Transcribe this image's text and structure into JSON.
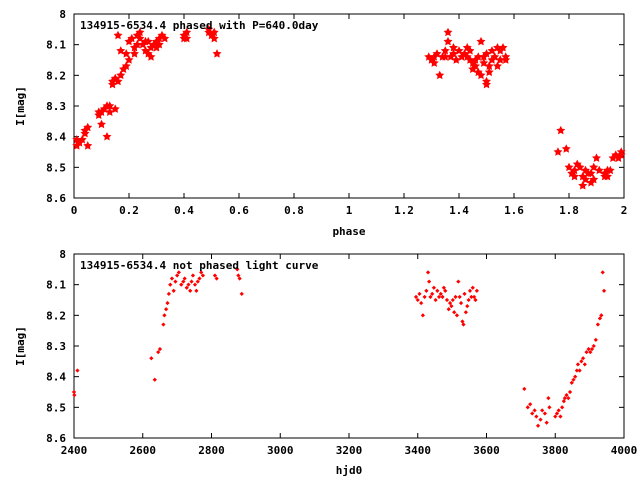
{
  "chart_data": [
    {
      "type": "scatter",
      "title": "134915-6534.4 phased with P=640.0day",
      "xlabel": "phase",
      "ylabel": "I[mag]",
      "xlim": [
        0,
        2
      ],
      "ylim": [
        8,
        8.6
      ],
      "y_inverted": true,
      "xticks": [
        "0",
        "0.2",
        "0.4",
        "0.6",
        "0.8",
        "1",
        "1.2",
        "1.4",
        "1.6",
        "1.8",
        "2"
      ],
      "yticks": [
        "8",
        "8.1",
        "8.2",
        "8.3",
        "8.4",
        "8.5",
        "8.6"
      ],
      "grid": false,
      "marker_color": "#ff0000",
      "marker": "filled-star",
      "series": [
        {
          "name": "",
          "points": [
            [
              0.01,
              8.41
            ],
            [
              0.01,
              8.43
            ],
            [
              0.02,
              8.42
            ],
            [
              0.03,
              8.41
            ],
            [
              0.04,
              8.38
            ],
            [
              0.04,
              8.39
            ],
            [
              0.05,
              8.43
            ],
            [
              0.05,
              8.37
            ],
            [
              0.09,
              8.33
            ],
            [
              0.09,
              8.32
            ],
            [
              0.1,
              8.36
            ],
            [
              0.1,
              8.32
            ],
            [
              0.11,
              8.31
            ],
            [
              0.12,
              8.3
            ],
            [
              0.12,
              8.4
            ],
            [
              0.13,
              8.32
            ],
            [
              0.13,
              8.3
            ],
            [
              0.14,
              8.23
            ],
            [
              0.14,
              8.22
            ],
            [
              0.15,
              8.21
            ],
            [
              0.15,
              8.31
            ],
            [
              0.16,
              8.22
            ],
            [
              0.16,
              8.07
            ],
            [
              0.17,
              8.12
            ],
            [
              0.17,
              8.2
            ],
            [
              0.18,
              8.18
            ],
            [
              0.19,
              8.17
            ],
            [
              0.19,
              8.13
            ],
            [
              0.2,
              8.15
            ],
            [
              0.2,
              8.09
            ],
            [
              0.21,
              8.08
            ],
            [
              0.22,
              8.13
            ],
            [
              0.22,
              8.11
            ],
            [
              0.23,
              8.07
            ],
            [
              0.23,
              8.1
            ],
            [
              0.24,
              8.08
            ],
            [
              0.24,
              8.06
            ],
            [
              0.25,
              8.1
            ],
            [
              0.26,
              8.12
            ],
            [
              0.26,
              8.09
            ],
            [
              0.27,
              8.13
            ],
            [
              0.27,
              8.09
            ],
            [
              0.28,
              8.11
            ],
            [
              0.28,
              8.14
            ],
            [
              0.29,
              8.1
            ],
            [
              0.3,
              8.11
            ],
            [
              0.3,
              8.09
            ],
            [
              0.31,
              8.08
            ],
            [
              0.31,
              8.1
            ],
            [
              0.32,
              8.07
            ],
            [
              0.33,
              8.08
            ],
            [
              0.4,
              8.07
            ],
            [
              0.4,
              8.08
            ],
            [
              0.41,
              8.06
            ],
            [
              0.41,
              8.08
            ],
            [
              0.49,
              8.05
            ],
            [
              0.49,
              8.06
            ],
            [
              0.5,
              8.07
            ],
            [
              0.51,
              8.08
            ],
            [
              0.51,
              8.06
            ],
            [
              0.52,
              8.13
            ],
            [
              1.29,
              8.14
            ],
            [
              1.3,
              8.15
            ],
            [
              1.31,
              8.14
            ],
            [
              1.31,
              8.16
            ],
            [
              1.32,
              8.13
            ],
            [
              1.33,
              8.2
            ],
            [
              1.34,
              8.14
            ],
            [
              1.35,
              8.12
            ],
            [
              1.35,
              8.14
            ],
            [
              1.36,
              8.06
            ],
            [
              1.36,
              8.09
            ],
            [
              1.37,
              8.14
            ],
            [
              1.38,
              8.13
            ],
            [
              1.38,
              8.11
            ],
            [
              1.39,
              8.15
            ],
            [
              1.4,
              8.12
            ],
            [
              1.41,
              8.14
            ],
            [
              1.42,
              8.13
            ],
            [
              1.43,
              8.14
            ],
            [
              1.43,
              8.11
            ],
            [
              1.44,
              8.12
            ],
            [
              1.44,
              8.15
            ],
            [
              1.45,
              8.18
            ],
            [
              1.45,
              8.16
            ],
            [
              1.46,
              8.17
            ],
            [
              1.46,
              8.15
            ],
            [
              1.47,
              8.19
            ],
            [
              1.47,
              8.14
            ],
            [
              1.48,
              8.2
            ],
            [
              1.48,
              8.09
            ],
            [
              1.49,
              8.14
            ],
            [
              1.49,
              8.16
            ],
            [
              1.5,
              8.22
            ],
            [
              1.5,
              8.23
            ],
            [
              1.5,
              8.13
            ],
            [
              1.51,
              8.19
            ],
            [
              1.51,
              8.17
            ],
            [
              1.52,
              8.15
            ],
            [
              1.52,
              8.12
            ],
            [
              1.53,
              8.14
            ],
            [
              1.54,
              8.17
            ],
            [
              1.54,
              8.11
            ],
            [
              1.55,
              8.15
            ],
            [
              1.55,
              8.12
            ],
            [
              1.56,
              8.11
            ],
            [
              1.57,
              8.14
            ],
            [
              1.57,
              8.15
            ],
            [
              1.76,
              8.45
            ],
            [
              1.77,
              8.38
            ],
            [
              1.79,
              8.44
            ],
            [
              1.8,
              8.5
            ],
            [
              1.81,
              8.52
            ],
            [
              1.82,
              8.51
            ],
            [
              1.82,
              8.53
            ],
            [
              1.83,
              8.49
            ],
            [
              1.84,
              8.5
            ],
            [
              1.85,
              8.53
            ],
            [
              1.85,
              8.56
            ],
            [
              1.86,
              8.54
            ],
            [
              1.86,
              8.51
            ],
            [
              1.87,
              8.52
            ],
            [
              1.88,
              8.52
            ],
            [
              1.88,
              8.55
            ],
            [
              1.89,
              8.54
            ],
            [
              1.89,
              8.5
            ],
            [
              1.9,
              8.47
            ],
            [
              1.91,
              8.51
            ],
            [
              1.93,
              8.53
            ],
            [
              1.93,
              8.52
            ],
            [
              1.94,
              8.51
            ],
            [
              1.94,
              8.53
            ],
            [
              1.95,
              8.51
            ],
            [
              1.96,
              8.47
            ],
            [
              1.97,
              8.46
            ],
            [
              1.98,
              8.47
            ],
            [
              1.99,
              8.45
            ],
            [
              1.99,
              8.46
            ]
          ]
        }
      ]
    },
    {
      "type": "scatter",
      "title": "134915-6534.4 not phased light curve",
      "xlabel": "hjd0",
      "ylabel": "I[mag]",
      "xlim": [
        2400,
        4000
      ],
      "ylim": [
        8,
        8.6
      ],
      "y_inverted": true,
      "xticks": [
        "2400",
        "2600",
        "2800",
        "3000",
        "3200",
        "3400",
        "3600",
        "3800",
        "4000"
      ],
      "yticks": [
        "8",
        "8.1",
        "8.2",
        "8.3",
        "8.4",
        "8.5",
        "8.6"
      ],
      "grid": false,
      "marker_color": "#ff0000",
      "marker": "small-diamond",
      "series": [
        {
          "name": "",
          "points": [
            [
              2400,
              8.45
            ],
            [
              2401,
              8.46
            ],
            [
              2410,
              8.38
            ],
            [
              2625,
              8.34
            ],
            [
              2635,
              8.41
            ],
            [
              2645,
              8.32
            ],
            [
              2650,
              8.31
            ],
            [
              2660,
              8.23
            ],
            [
              2663,
              8.2
            ],
            [
              2668,
              8.18
            ],
            [
              2672,
              8.16
            ],
            [
              2676,
              8.13
            ],
            [
              2680,
              8.1
            ],
            [
              2685,
              8.08
            ],
            [
              2690,
              8.12
            ],
            [
              2695,
              8.09
            ],
            [
              2700,
              8.07
            ],
            [
              2705,
              8.06
            ],
            [
              2712,
              8.1
            ],
            [
              2718,
              8.09
            ],
            [
              2722,
              8.08
            ],
            [
              2728,
              8.11
            ],
            [
              2733,
              8.1
            ],
            [
              2738,
              8.12
            ],
            [
              2742,
              8.09
            ],
            [
              2746,
              8.07
            ],
            [
              2752,
              8.1
            ],
            [
              2756,
              8.12
            ],
            [
              2760,
              8.09
            ],
            [
              2765,
              8.08
            ],
            [
              2770,
              8.06
            ],
            [
              2775,
              8.07
            ],
            [
              2810,
              8.07
            ],
            [
              2815,
              8.08
            ],
            [
              2875,
              8.05
            ],
            [
              2878,
              8.07
            ],
            [
              2882,
              8.08
            ],
            [
              2888,
              8.13
            ],
            [
              3395,
              8.14
            ],
            [
              3400,
              8.15
            ],
            [
              3405,
              8.13
            ],
            [
              3410,
              8.16
            ],
            [
              3415,
              8.2
            ],
            [
              3420,
              8.14
            ],
            [
              3425,
              8.12
            ],
            [
              3430,
              8.06
            ],
            [
              3433,
              8.09
            ],
            [
              3437,
              8.14
            ],
            [
              3442,
              8.13
            ],
            [
              3447,
              8.11
            ],
            [
              3452,
              8.15
            ],
            [
              3457,
              8.12
            ],
            [
              3462,
              8.14
            ],
            [
              3467,
              8.13
            ],
            [
              3472,
              8.14
            ],
            [
              3476,
              8.11
            ],
            [
              3480,
              8.12
            ],
            [
              3485,
              8.15
            ],
            [
              3490,
              8.18
            ],
            [
              3494,
              8.16
            ],
            [
              3498,
              8.17
            ],
            [
              3502,
              8.15
            ],
            [
              3506,
              8.19
            ],
            [
              3510,
              8.14
            ],
            [
              3514,
              8.2
            ],
            [
              3518,
              8.09
            ],
            [
              3522,
              8.14
            ],
            [
              3526,
              8.16
            ],
            [
              3530,
              8.22
            ],
            [
              3533,
              8.23
            ],
            [
              3536,
              8.13
            ],
            [
              3540,
              8.19
            ],
            [
              3544,
              8.17
            ],
            [
              3548,
              8.15
            ],
            [
              3552,
              8.12
            ],
            [
              3556,
              8.14
            ],
            [
              3560,
              8.11
            ],
            [
              3564,
              8.14
            ],
            [
              3568,
              8.15
            ],
            [
              3572,
              8.12
            ],
            [
              3710,
              8.44
            ],
            [
              3720,
              8.5
            ],
            [
              3727,
              8.49
            ],
            [
              3733,
              8.52
            ],
            [
              3740,
              8.51
            ],
            [
              3745,
              8.53
            ],
            [
              3750,
              8.56
            ],
            [
              3757,
              8.54
            ],
            [
              3762,
              8.51
            ],
            [
              3770,
              8.52
            ],
            [
              3775,
              8.55
            ],
            [
              3780,
              8.47
            ],
            [
              3783,
              8.5
            ],
            [
              3800,
              8.53
            ],
            [
              3805,
              8.52
            ],
            [
              3810,
              8.51
            ],
            [
              3815,
              8.53
            ],
            [
              3820,
              8.5
            ],
            [
              3825,
              8.48
            ],
            [
              3828,
              8.47
            ],
            [
              3833,
              8.46
            ],
            [
              3838,
              8.47
            ],
            [
              3843,
              8.45
            ],
            [
              3848,
              8.42
            ],
            [
              3853,
              8.41
            ],
            [
              3858,
              8.4
            ],
            [
              3863,
              8.38
            ],
            [
              3866,
              8.36
            ],
            [
              3871,
              8.38
            ],
            [
              3876,
              8.35
            ],
            [
              3881,
              8.34
            ],
            [
              3886,
              8.36
            ],
            [
              3891,
              8.32
            ],
            [
              3897,
              8.31
            ],
            [
              3902,
              8.32
            ],
            [
              3907,
              8.31
            ],
            [
              3912,
              8.3
            ],
            [
              3918,
              8.28
            ],
            [
              3924,
              8.23
            ],
            [
              3930,
              8.21
            ],
            [
              3934,
              8.2
            ],
            [
              3938,
              8.06
            ],
            [
              3942,
              8.12
            ]
          ]
        }
      ]
    }
  ]
}
